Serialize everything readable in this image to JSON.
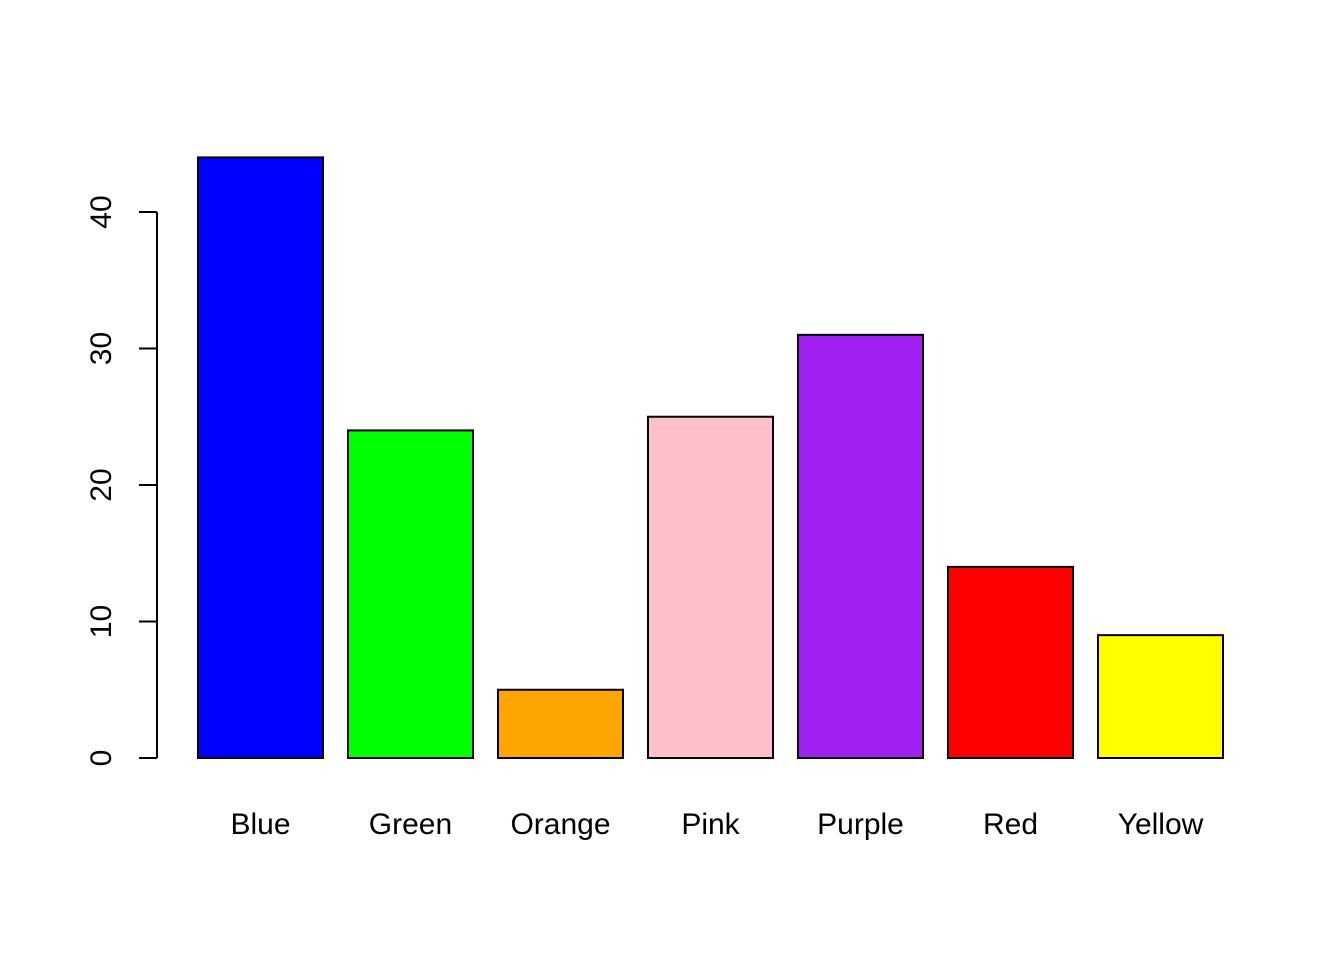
{
  "chart_data": {
    "type": "bar",
    "categories": [
      "Blue",
      "Green",
      "Orange",
      "Pink",
      "Purple",
      "Red",
      "Yellow"
    ],
    "values": [
      44,
      24,
      5,
      25,
      31,
      14,
      9
    ],
    "colors": [
      "#0000FF",
      "#00FF00",
      "#FFA500",
      "#FFC0CB",
      "#A020F0",
      "#FF0000",
      "#FFFF00"
    ],
    "title": "",
    "xlabel": "",
    "ylabel": "",
    "ylim": [
      0,
      40
    ],
    "yticks": [
      0,
      10,
      20,
      30,
      40
    ],
    "grid": false,
    "bar_border_color": "#000000"
  }
}
